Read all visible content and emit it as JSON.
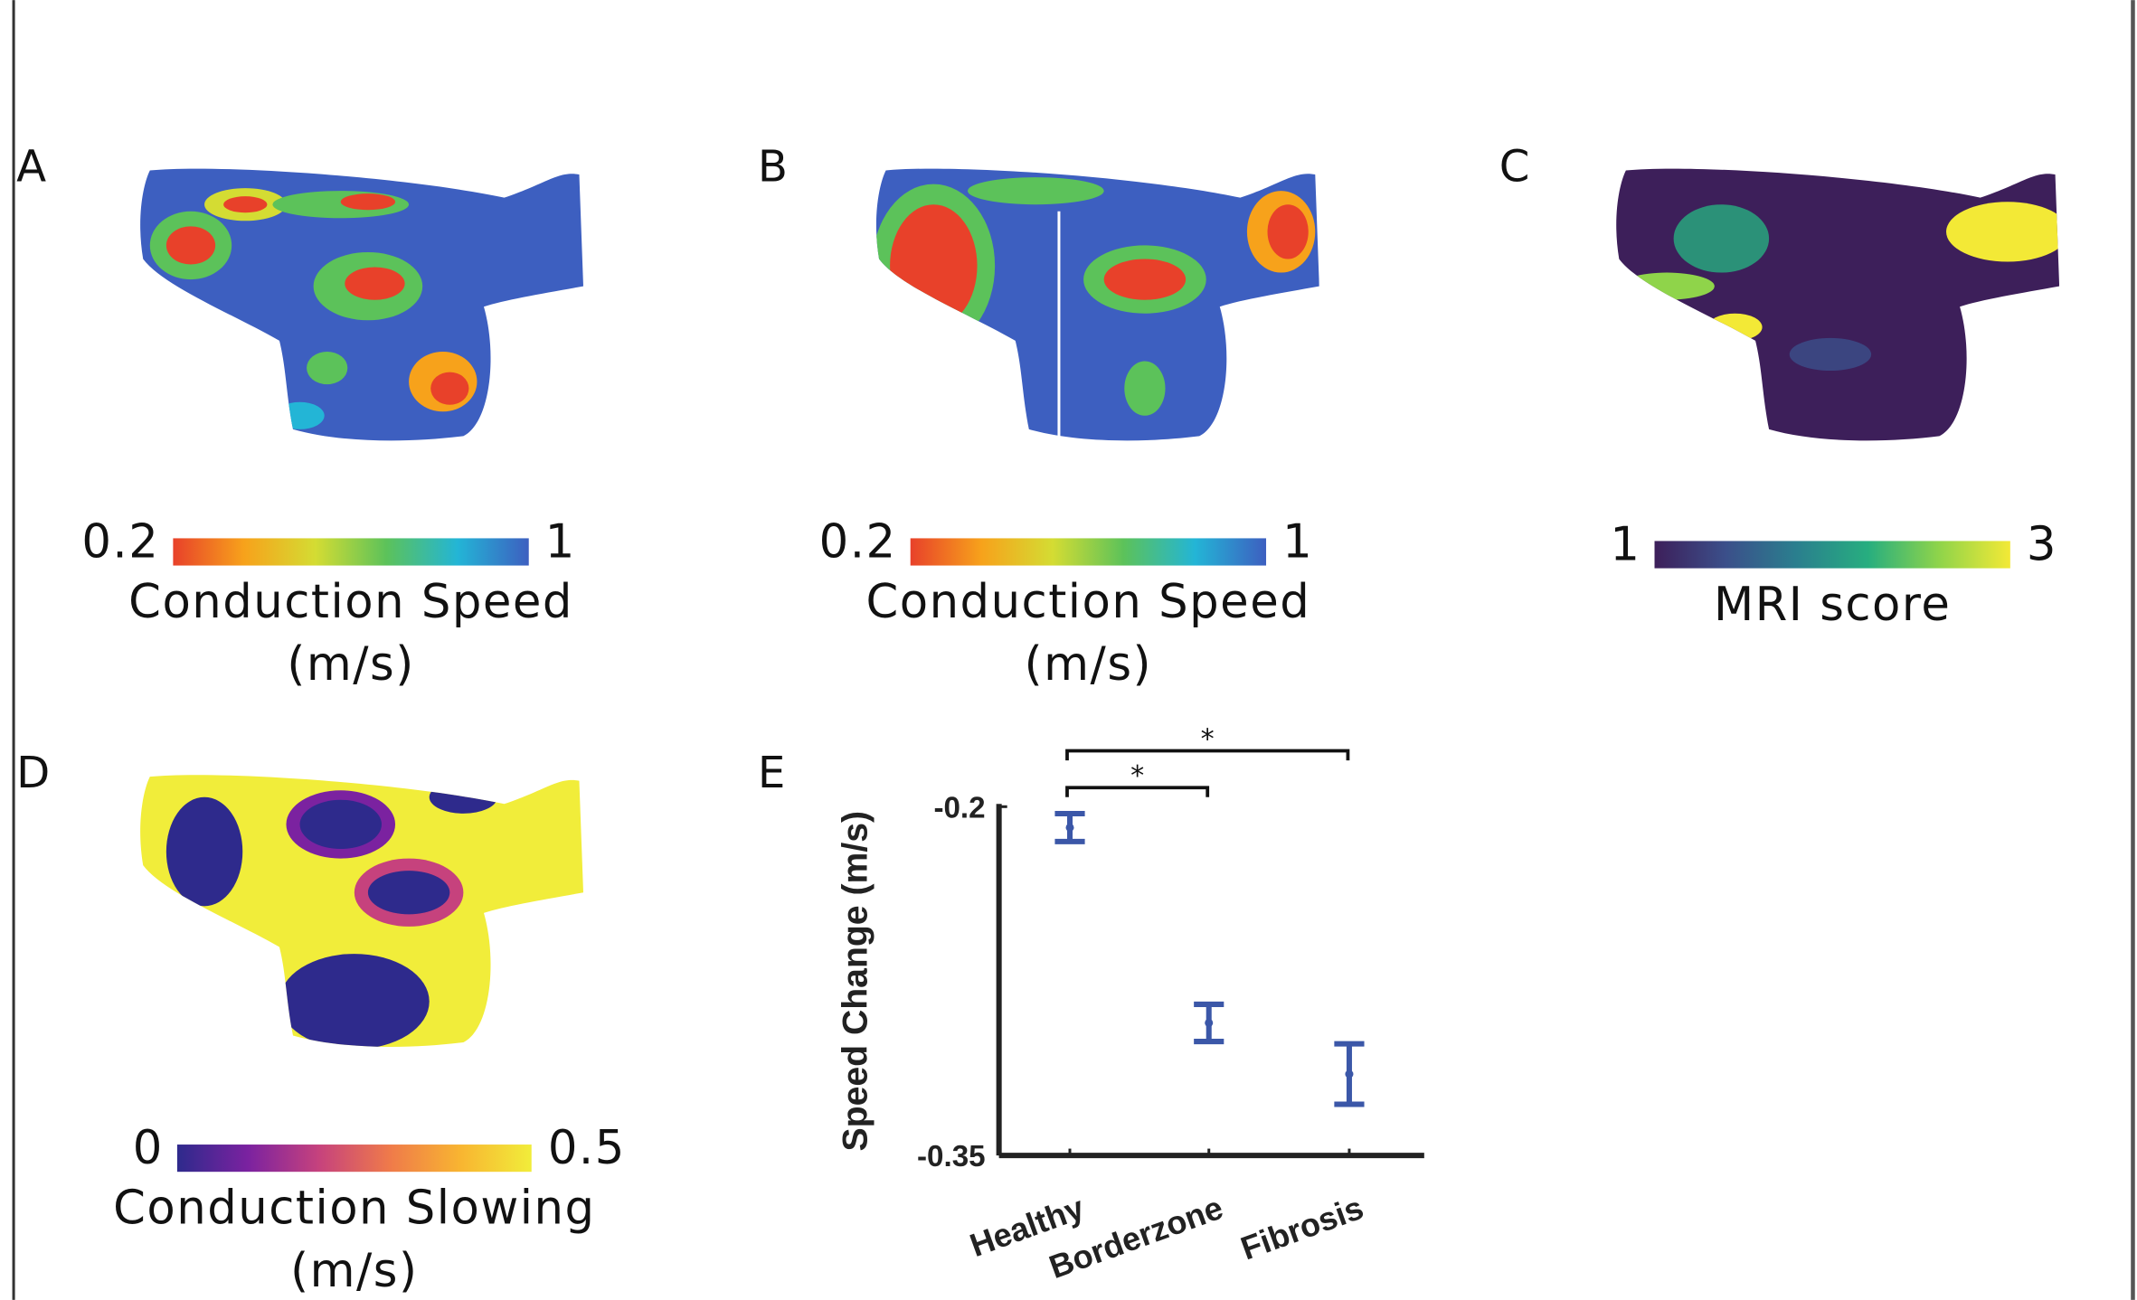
{
  "panels": [
    {
      "label": "A",
      "colorbar": {
        "ticks": [
          0.2,
          1
        ],
        "title": [
          "Conduction Speed",
          "(m/s)"
        ],
        "colors": [
          "#e8412a",
          "#f7a21b",
          "#d4dc33",
          "#5cc25a",
          "#23b5d6",
          "#3d5fc0"
        ]
      }
    },
    {
      "label": "B",
      "colorbar": {
        "ticks": [
          0.2,
          1
        ],
        "title": [
          "Conduction Speed",
          "(m/s)"
        ],
        "colors": [
          "#e8412a",
          "#f7a21b",
          "#d4dc33",
          "#5cc25a",
          "#23b5d6",
          "#3d5fc0"
        ]
      }
    },
    {
      "label": "C",
      "colorbar": {
        "ticks": [
          1,
          3
        ],
        "title": [
          "MRI score"
        ],
        "colors": [
          "#3d1f5a",
          "#3b4f8a",
          "#2a7f8e",
          "#27ae7f",
          "#8fd44a",
          "#f3e936"
        ]
      }
    },
    {
      "label": "D",
      "colorbar": {
        "ticks": [
          0,
          0.5
        ],
        "title": [
          "Conduction Slowing",
          "(m/s)"
        ],
        "colors": [
          "#2e2a8c",
          "#7b22a0",
          "#c6427d",
          "#ef7a4a",
          "#f8b531",
          "#f1ed3a"
        ]
      }
    }
  ],
  "chart_data": {
    "type": "errorbar",
    "label": "E",
    "ylabel": "Speed Change (m/s)",
    "categories": [
      "Healthy",
      "Borderzone",
      "Fibrosis"
    ],
    "values": [
      -0.209,
      -0.293,
      -0.315
    ],
    "errors": [
      0.006,
      0.008,
      0.013
    ],
    "color": "#3b57a8",
    "ylim": [
      -0.35,
      -0.2
    ],
    "yticks": [
      -0.2,
      -0.35
    ],
    "annotations": [
      {
        "text": "*",
        "between": [
          0,
          1
        ]
      },
      {
        "text": "*",
        "between": [
          0,
          2
        ]
      }
    ]
  }
}
